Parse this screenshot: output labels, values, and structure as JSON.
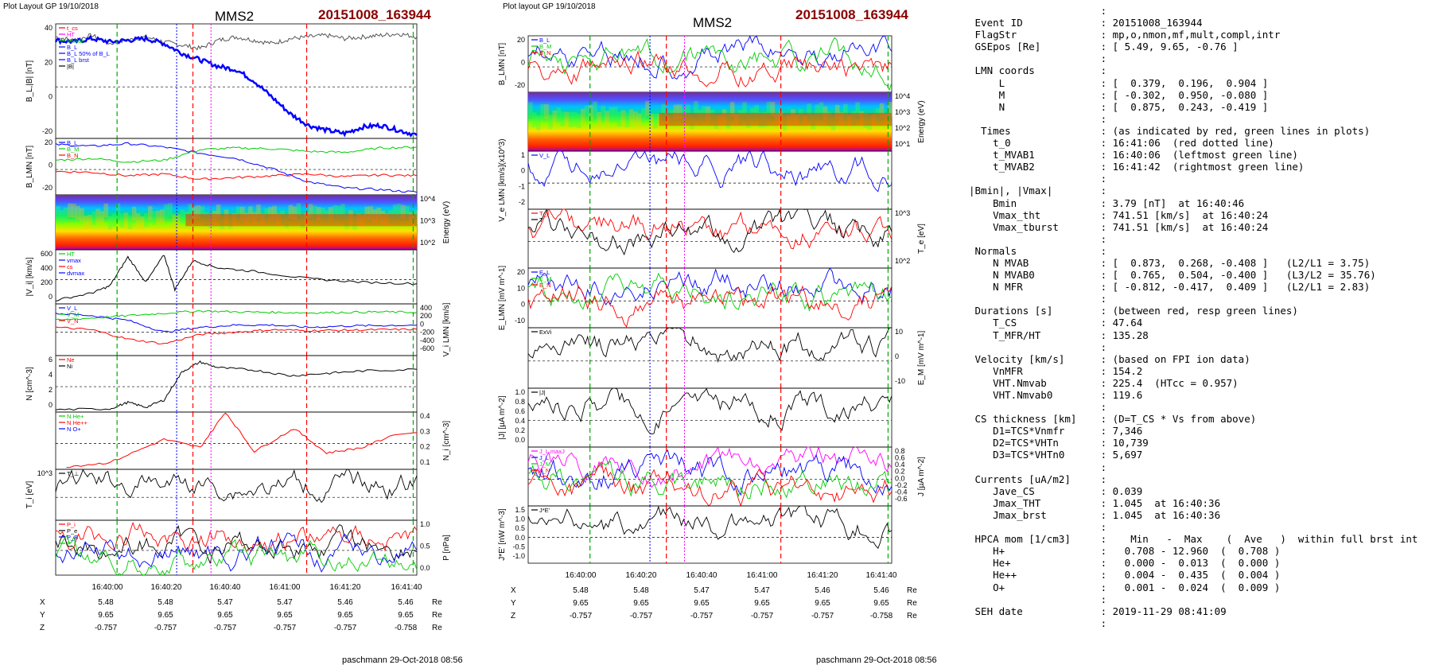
{
  "figures": [
    {
      "header_left": "Plot Layout GP 19/10/2018",
      "title": "MMS2",
      "event": "20151008_163944",
      "footer": "paschmann 29-Oct-2018 08:56",
      "x_ticks": [
        "16:40:00",
        "16:40:20",
        "16:40:40",
        "16:41:00",
        "16:41:20",
        "16:41:40"
      ],
      "coords": {
        "rows": [
          {
            "label": "X",
            "values": [
              "5.48",
              "5.48",
              "5.47",
              "5.47",
              "5.46",
              "5.46"
            ],
            "unit": "Re"
          },
          {
            "label": "Y",
            "values": [
              "9.65",
              "9.65",
              "9.65",
              "9.65",
              "9.65",
              "9.65"
            ],
            "unit": "Re"
          },
          {
            "label": "Z",
            "values": [
              "-0.757",
              "-0.757",
              "-0.757",
              "-0.757",
              "-0.757",
              "-0.758"
            ],
            "unit": "Re"
          }
        ]
      }
    },
    {
      "header_left": "Plot layout GP 19/10/2018",
      "title": "MMS2",
      "event": "20151008_163944",
      "footer": "paschmann 29-Oct-2018 08:56",
      "x_ticks": [
        "16:40:00",
        "16:40:20",
        "16:40:40",
        "16:41:00",
        "16:41:20",
        "16:41:40"
      ],
      "coords": {
        "rows": [
          {
            "label": "X",
            "values": [
              "5.48",
              "5.48",
              "5.47",
              "5.47",
              "5.46",
              "5.46"
            ],
            "unit": "Re"
          },
          {
            "label": "Y",
            "values": [
              "9.65",
              "9.65",
              "9.65",
              "9.65",
              "9.65",
              "9.65"
            ],
            "unit": "Re"
          },
          {
            "label": "Z",
            "values": [
              "-0.757",
              "-0.757",
              "-0.757",
              "-0.757",
              "-0.757",
              "-0.758"
            ],
            "unit": "Re"
          }
        ]
      }
    }
  ],
  "chart_data": [
    {
      "type": "line",
      "figure": 0,
      "ylabel": "B_L,|B| [nT]",
      "ylim": [
        -30,
        40
      ],
      "yticks": [
        "40",
        "20",
        "0",
        "-20"
      ],
      "legend": [
        "t_cs",
        "HT",
        "MVAB",
        "B_L",
        "B_L 50% of B_L",
        "B_L brst",
        "|B|"
      ],
      "legend_colors": [
        "#ff0000",
        "#ff00ff",
        "#00cc00",
        "#0000ff",
        "#0000ff",
        "#0000ff",
        "#000000"
      ],
      "series": [
        {
          "name": "|B|",
          "color": "#555555",
          "t": [
            0,
            5,
            10,
            15,
            20,
            25,
            30,
            35,
            40,
            45,
            50,
            55,
            60,
            65,
            70,
            75,
            80,
            85,
            90,
            95,
            100
          ],
          "values": [
            32,
            30,
            33,
            28,
            30,
            32,
            29,
            27,
            25,
            30,
            32,
            30,
            28,
            31,
            32,
            33,
            31,
            32,
            33,
            34,
            32
          ]
        },
        {
          "name": "B_L",
          "color": "#0000ff",
          "t": [
            0,
            5,
            10,
            15,
            20,
            25,
            30,
            35,
            40,
            45,
            50,
            55,
            60,
            65,
            70,
            75,
            80,
            85,
            90,
            95,
            100
          ],
          "values": [
            30,
            29,
            31,
            29,
            30,
            31,
            28,
            22,
            18,
            14,
            12,
            5,
            -5,
            -15,
            -22,
            -25,
            -27,
            -23,
            -22,
            -25,
            -28
          ]
        }
      ]
    },
    {
      "type": "line",
      "figure": 0,
      "ylabel": "B_LMN [nT]",
      "ylim": [
        -30,
        35
      ],
      "yticks": [
        "20",
        "0",
        "-20"
      ],
      "legend": [
        "B_L",
        "B_M",
        "B_N"
      ],
      "legend_colors": [
        "#0000ff",
        "#00cc00",
        "#ff0000"
      ],
      "series": [
        {
          "name": "B_L",
          "color": "#0000ff",
          "t": [
            0,
            10,
            20,
            30,
            40,
            50,
            60,
            70,
            80,
            90,
            100
          ],
          "values": [
            28,
            26,
            29,
            25,
            18,
            12,
            0,
            -15,
            -22,
            -24,
            -27
          ]
        },
        {
          "name": "B_M",
          "color": "#00cc00",
          "t": [
            0,
            10,
            20,
            30,
            40,
            50,
            60,
            70,
            80,
            90,
            100
          ],
          "values": [
            10,
            12,
            8,
            10,
            22,
            24,
            23,
            20,
            19,
            24,
            25
          ]
        },
        {
          "name": "B_N",
          "color": "#ff0000",
          "t": [
            0,
            10,
            20,
            30,
            40,
            50,
            60,
            70,
            80,
            90,
            100
          ],
          "values": [
            -3,
            -4,
            -8,
            -6,
            -12,
            -10,
            -8,
            -6,
            -9,
            -7,
            -8
          ]
        }
      ]
    },
    {
      "type": "heatmap",
      "figure": 0,
      "ylabel": "Energy (eV)",
      "yticks": [
        "10^4",
        "10^3",
        "10^2"
      ]
    },
    {
      "type": "line",
      "figure": 0,
      "ylabel": "|V_i| [km/s]",
      "ylim": [
        0,
        750
      ],
      "yticks": [
        "600",
        "400",
        "200",
        "0"
      ],
      "legend": [
        "HT",
        "vmax",
        "cs",
        "dvmax"
      ],
      "legend_colors": [
        "#00cc00",
        "#0000ff",
        "#ff0000",
        "#0000ff"
      ],
      "series": [
        {
          "name": "|V_i|",
          "color": "#000000",
          "t": [
            0,
            10,
            15,
            20,
            25,
            30,
            33,
            38,
            45,
            55,
            70,
            85,
            100
          ],
          "values": [
            50,
            150,
            250,
            650,
            300,
            680,
            200,
            600,
            500,
            450,
            350,
            300,
            280
          ]
        }
      ]
    },
    {
      "type": "line",
      "figure": 0,
      "ylabel": "V_i LMN [km/s]",
      "ylim": [
        -650,
        450
      ],
      "yticks": [
        "400",
        "200",
        "0",
        "-200",
        "-400",
        "-600"
      ],
      "legend": [
        "V_L",
        "V_M",
        "V_N"
      ],
      "legend_colors": [
        "#0000ff",
        "#00cc00",
        "#ff0000"
      ],
      "series": [
        {
          "name": "V_L",
          "color": "#0000ff",
          "t": [
            0,
            10,
            20,
            30,
            40,
            50,
            60,
            70,
            80,
            90,
            100
          ],
          "values": [
            250,
            200,
            100,
            -150,
            -50,
            0,
            0,
            -50,
            -20,
            -10,
            0
          ]
        },
        {
          "name": "V_M",
          "color": "#00cc00",
          "t": [
            0,
            10,
            20,
            30,
            40,
            50,
            60,
            70,
            80,
            90,
            100
          ],
          "values": [
            100,
            150,
            200,
            250,
            300,
            280,
            270,
            260,
            270,
            280,
            270
          ]
        },
        {
          "name": "V_N",
          "color": "#ff0000",
          "t": [
            0,
            10,
            20,
            30,
            40,
            50,
            60,
            70,
            80,
            90,
            100
          ],
          "values": [
            -50,
            -100,
            -300,
            -400,
            -200,
            -150,
            -100,
            -120,
            -110,
            -100,
            -90
          ]
        }
      ]
    },
    {
      "type": "line",
      "figure": 0,
      "ylabel": "N [cm^-3]",
      "ylim": [
        0,
        7
      ],
      "yticks": [
        "6",
        "4",
        "2",
        "0"
      ],
      "legend": [
        "Ne",
        "Ni"
      ],
      "legend_colors": [
        "#ff0000",
        "#000000"
      ],
      "series": [
        {
          "name": "Ni",
          "color": "#000000",
          "t": [
            0,
            15,
            20,
            25,
            30,
            35,
            40,
            45,
            55,
            65,
            75,
            85,
            100
          ],
          "values": [
            0.3,
            0.4,
            1.2,
            0.6,
            1.5,
            5,
            6.2,
            5.5,
            5.2,
            4.5,
            4.8,
            5.1,
            5.3
          ]
        }
      ]
    },
    {
      "type": "line",
      "figure": 0,
      "ylabel": "N_i [cm^-3]",
      "ylim": [
        0,
        0.42
      ],
      "yticks": [
        "0.4",
        "0.3",
        "0.2",
        "0.1"
      ],
      "legend": [
        "N He+",
        "N He++",
        "N O+"
      ],
      "legend_colors": [
        "#00cc00",
        "#ff0000",
        "#0000ff"
      ],
      "series": [
        {
          "name": "N He++",
          "color": "#ff0000",
          "t": [
            3,
            15,
            30,
            40,
            47,
            55,
            66,
            75,
            85,
            95
          ],
          "values": [
            0.02,
            0.05,
            0.22,
            0.16,
            0.42,
            0.13,
            0.3,
            0.12,
            0.16,
            0.27
          ]
        }
      ]
    },
    {
      "type": "line",
      "figure": 0,
      "ylabel": "T_i [eV]",
      "yticks": [
        "10^3"
      ],
      "legend": [
        "T_⊥"
      ],
      "legend_colors": [
        "#000000"
      ]
    },
    {
      "type": "line",
      "figure": 0,
      "ylabel": "P [nPa]",
      "ylim": [
        0,
        1.3
      ],
      "yticks": [
        "1.0",
        "0.5",
        "0.0"
      ],
      "legend": [
        "P_i",
        "P_e",
        "P_B",
        "P_t"
      ],
      "legend_colors": [
        "#ff0000",
        "#000000",
        "#0000ff",
        "#00cc00"
      ]
    },
    {
      "type": "line",
      "figure": 1,
      "ylabel": "B_LMN [nT]",
      "yticks": [
        "20",
        "0",
        "-20"
      ],
      "legend": [
        "B_L",
        "B_M",
        "B_N"
      ],
      "legend_colors": [
        "#0000ff",
        "#00cc00",
        "#ff0000"
      ]
    },
    {
      "type": "heatmap",
      "figure": 1,
      "ylabel": "Energy (eV)",
      "yticks": [
        "10^4",
        "10^3",
        "10^2",
        "10^1"
      ]
    },
    {
      "type": "line",
      "figure": 1,
      "ylabel": "V_e LMN [km/s](x10^3)",
      "yticks": [
        "1",
        "0",
        "-1",
        "-2"
      ],
      "legend": [
        "V_L"
      ],
      "legend_colors": [
        "#0000ff"
      ]
    },
    {
      "type": "line",
      "figure": 1,
      "ylabel": "T_e [eV]",
      "yticks": [
        "10^3",
        "10^2"
      ],
      "legend": [
        "T_∥",
        "T"
      ],
      "legend_colors": [
        "#ff0000",
        "#000000"
      ]
    },
    {
      "type": "line",
      "figure": 1,
      "ylabel": "E_LMN [mV m^-1]",
      "yticks": [
        "20",
        "10",
        "0",
        "-10"
      ],
      "legend": [
        "E_L",
        "E_M",
        "E_N"
      ],
      "legend_colors": [
        "#0000ff",
        "#00cc00",
        "#ff0000"
      ]
    },
    {
      "type": "line",
      "figure": 1,
      "ylabel": "E_M [mV m^-1]",
      "yticks": [
        "10",
        "0",
        "-10"
      ],
      "legend": [
        "ExVi"
      ],
      "legend_colors": [
        "#000000"
      ]
    },
    {
      "type": "line",
      "figure": 1,
      "ylabel": "|J| [µA m^-2]",
      "yticks": [
        "1.0",
        "0.8",
        "0.6",
        "0.4",
        "0.2",
        "0.0"
      ],
      "legend": [
        "|J|"
      ],
      "legend_colors": [
        "#000000"
      ]
    },
    {
      "type": "line",
      "figure": 1,
      "ylabel": "J [µA m^-2]",
      "yticks": [
        "0.8",
        "0.6",
        "0.4",
        "0.2",
        "0.0",
        "-0.2",
        "-0.4",
        "-0.6"
      ],
      "legend": [
        "J_L maxJ",
        "J_L",
        "J_M",
        "J_N"
      ],
      "legend_colors": [
        "#ff00ff",
        "#0000ff",
        "#00cc00",
        "#ff0000"
      ]
    },
    {
      "type": "line",
      "figure": 1,
      "ylabel": "J*E' [nW m^-3]",
      "yticks": [
        "1.5",
        "1.0",
        "0.5",
        "0.0",
        "-0.5",
        "-1.0"
      ],
      "legend": [
        "J*E'"
      ],
      "legend_colors": [
        "#000000"
      ]
    }
  ],
  "info": [
    {
      "k": "",
      "v": ":"
    },
    {
      "k": " Event ID",
      "v": ": 20151008_163944"
    },
    {
      "k": " FlagStr",
      "v": ": mp,o,nmon,mf,mult,compl,intr"
    },
    {
      "k": " GSEpos [Re]",
      "v": ": [ 5.49, 9.65, -0.76 ]"
    },
    {
      "k": "",
      "v": ":"
    },
    {
      "k": " LMN coords",
      "v": ":"
    },
    {
      "k": "     L",
      "v": ": [  0.379,  0.196,  0.904 ]"
    },
    {
      "k": "     M",
      "v": ": [ -0.302,  0.950, -0.080 ]"
    },
    {
      "k": "     N",
      "v": ": [  0.875,  0.243, -0.419 ]"
    },
    {
      "k": "",
      "v": ":"
    },
    {
      "k": "  Times",
      "v": ": (as indicated by red, green lines in plots)"
    },
    {
      "k": "    t_0",
      "v": ": 16:41:06  (red dotted line)"
    },
    {
      "k": "    t_MVAB1",
      "v": ": 16:40:06  (leftmost green line)"
    },
    {
      "k": "    t_MVAB2",
      "v": ": 16:41:42  (rightmost green line)"
    },
    {
      "k": "",
      "v": ":"
    },
    {
      "k": "|Bmin|, |Vmax|",
      "v": ":"
    },
    {
      "k": "    Bmin",
      "v": ": 3.79 [nT]  at 16:40:46"
    },
    {
      "k": "    Vmax_tht",
      "v": ": 741.51 [km/s]  at 16:40:24"
    },
    {
      "k": "    Vmax_tburst",
      "v": ": 741.51 [km/s]  at 16:40:24"
    },
    {
      "k": "",
      "v": ":"
    },
    {
      "k": " Normals",
      "v": ":"
    },
    {
      "k": "    N MVAB",
      "v": ": [  0.873,  0.268, -0.408 ]   (L2/L1 = 3.75)"
    },
    {
      "k": "    N MVAB0",
      "v": ": [  0.765,  0.504, -0.400 ]   (L3/L2 = 35.76)"
    },
    {
      "k": "    N MFR",
      "v": ": [ -0.812, -0.417,  0.409 ]   (L2/L1 = 2.83)"
    },
    {
      "k": "",
      "v": ":"
    },
    {
      "k": " Durations [s]",
      "v": ": (between red, resp green lines)"
    },
    {
      "k": "    T_CS",
      "v": ": 47.64"
    },
    {
      "k": "    T_MFR/HT",
      "v": ": 135.28"
    },
    {
      "k": "",
      "v": ":"
    },
    {
      "k": " Velocity [km/s]",
      "v": ": (based on FPI ion data)"
    },
    {
      "k": "    VnMFR",
      "v": ": 154.2"
    },
    {
      "k": "    VHT.Nmvab",
      "v": ": 225.4  (HTcc = 0.957)"
    },
    {
      "k": "    VHT.Nmvab0",
      "v": ": 119.6"
    },
    {
      "k": "",
      "v": ":"
    },
    {
      "k": " CS thickness [km]",
      "v": ": (D=T_CS * Vs from above)"
    },
    {
      "k": "    D1=TCS*Vnmfr",
      "v": ": 7,346"
    },
    {
      "k": "    D2=TCS*VHTn",
      "v": ": 10,739"
    },
    {
      "k": "    D3=TCS*VHTn0",
      "v": ": 5,697"
    },
    {
      "k": "",
      "v": ":"
    },
    {
      "k": " Currents [uA/m2]",
      "v": ":"
    },
    {
      "k": "    Jave_CS",
      "v": ": 0.039"
    },
    {
      "k": "    Jmax_THT",
      "v": ": 1.045  at 16:40:36"
    },
    {
      "k": "    Jmax_brst",
      "v": ": 1.045  at 16:40:36"
    },
    {
      "k": "",
      "v": ":"
    },
    {
      "k": " HPCA mom [1/cm3]",
      "v": ":    Min   -  Max    (  Ave   )  within full brst int"
    },
    {
      "k": "    H+",
      "v": ":   0.708 - 12.960  (  0.708 )"
    },
    {
      "k": "    He+",
      "v": ":   0.000 -  0.013  (  0.000 )"
    },
    {
      "k": "    He++",
      "v": ":   0.004 -  0.435  (  0.004 )"
    },
    {
      "k": "    O+",
      "v": ":   0.001 -  0.024  (  0.009 )"
    },
    {
      "k": "",
      "v": ":"
    },
    {
      "k": " SEH date",
      "v": ": 2019-11-29 08:41:09"
    },
    {
      "k": "",
      "v": ":"
    }
  ]
}
